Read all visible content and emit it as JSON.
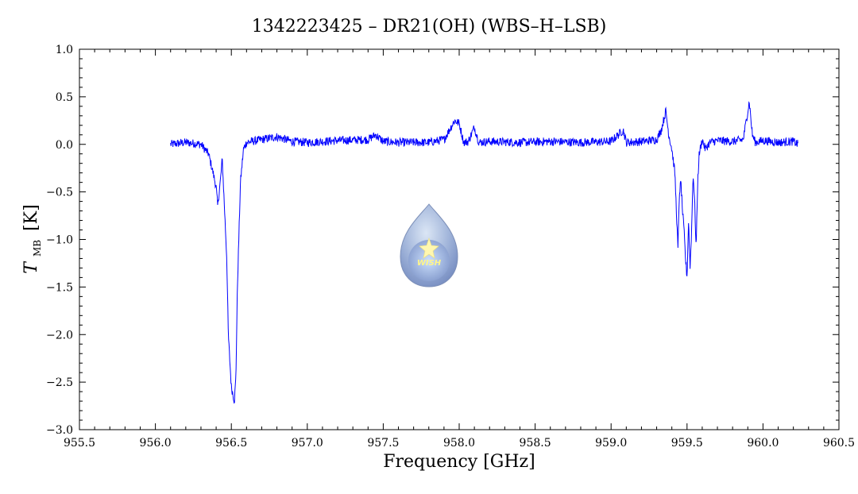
{
  "page": {
    "title": "1342223425 – DR21(OH) (WBS–H–LSB)",
    "logo_text": "WISH"
  },
  "chart_data": {
    "type": "line",
    "title": "1342223425 – DR21(OH) (WBS–H–LSB)",
    "xlabel": "Frequency [GHz]",
    "ylabel": "T",
    "ylabel_sub": "MB",
    "ylabel_unit": "[K]",
    "xlim": [
      955.5,
      960.5
    ],
    "ylim": [
      -3.0,
      1.0
    ],
    "x_ticks": [
      955.5,
      956.0,
      956.5,
      957.0,
      957.5,
      958.0,
      958.5,
      959.0,
      959.5,
      960.0,
      960.5
    ],
    "x_tick_labels": [
      "955.5",
      "956.0",
      "956.5",
      "957.0",
      "957.5",
      "958.0",
      "958.5",
      "959.0",
      "959.5",
      "960.0",
      "960.5"
    ],
    "y_ticks": [
      -3.0,
      -2.5,
      -2.0,
      -1.5,
      -1.0,
      -0.5,
      0.0,
      0.5,
      1.0
    ],
    "y_tick_labels": [
      "−3.0",
      "−2.5",
      "−2.0",
      "−1.5",
      "−1.0",
      "−0.5",
      "0.0",
      "0.5",
      "1.0"
    ],
    "grid": false,
    "series_color": "#0000ff",
    "series": [
      {
        "x": [
          956.1,
          956.2,
          956.3,
          956.35,
          956.38,
          956.4,
          956.41,
          956.43,
          956.44,
          956.45,
          956.47,
          956.48,
          956.5,
          956.51,
          956.52,
          956.53,
          956.54,
          956.56,
          956.58,
          956.6,
          956.7,
          956.8,
          956.9,
          957.0,
          957.2,
          957.4,
          957.45,
          957.5,
          957.6,
          957.8,
          957.9,
          957.97,
          958.0,
          958.03,
          958.06,
          958.1,
          958.13,
          958.2,
          958.4,
          958.6,
          958.8,
          959.0,
          959.08,
          959.1,
          959.2,
          959.3,
          959.33,
          959.36,
          959.38,
          959.4,
          959.42,
          959.44,
          959.45,
          959.46,
          959.47,
          959.48,
          959.49,
          959.5,
          959.51,
          959.52,
          959.53,
          959.54,
          959.55,
          959.56,
          959.57,
          959.58,
          959.6,
          959.62,
          959.65,
          959.7,
          959.8,
          959.87,
          959.89,
          959.91,
          959.93,
          959.95,
          960.0,
          960.1,
          960.2,
          960.23
        ],
        "y": [
          0.0,
          0.02,
          0.0,
          -0.1,
          -0.3,
          -0.45,
          -0.65,
          -0.35,
          -0.15,
          -0.5,
          -1.2,
          -2.0,
          -2.55,
          -2.62,
          -2.7,
          -2.45,
          -1.5,
          -0.4,
          -0.05,
          0.02,
          0.05,
          0.08,
          0.03,
          0.02,
          0.04,
          0.05,
          0.1,
          0.03,
          0.02,
          0.02,
          0.05,
          0.25,
          0.22,
          0.02,
          0.03,
          0.18,
          0.02,
          0.03,
          0.02,
          0.03,
          0.02,
          0.03,
          0.15,
          0.02,
          0.03,
          0.05,
          0.15,
          0.35,
          0.1,
          -0.05,
          -0.3,
          -1.1,
          -0.5,
          -0.4,
          -0.7,
          -0.9,
          -1.2,
          -1.4,
          -0.8,
          -1.3,
          -0.9,
          -0.3,
          -0.6,
          -1.1,
          -0.4,
          -0.1,
          0.05,
          -0.05,
          0.02,
          0.04,
          0.03,
          0.05,
          0.25,
          0.45,
          0.1,
          0.02,
          0.04,
          0.02,
          0.03,
          0.0
        ]
      }
    ]
  }
}
